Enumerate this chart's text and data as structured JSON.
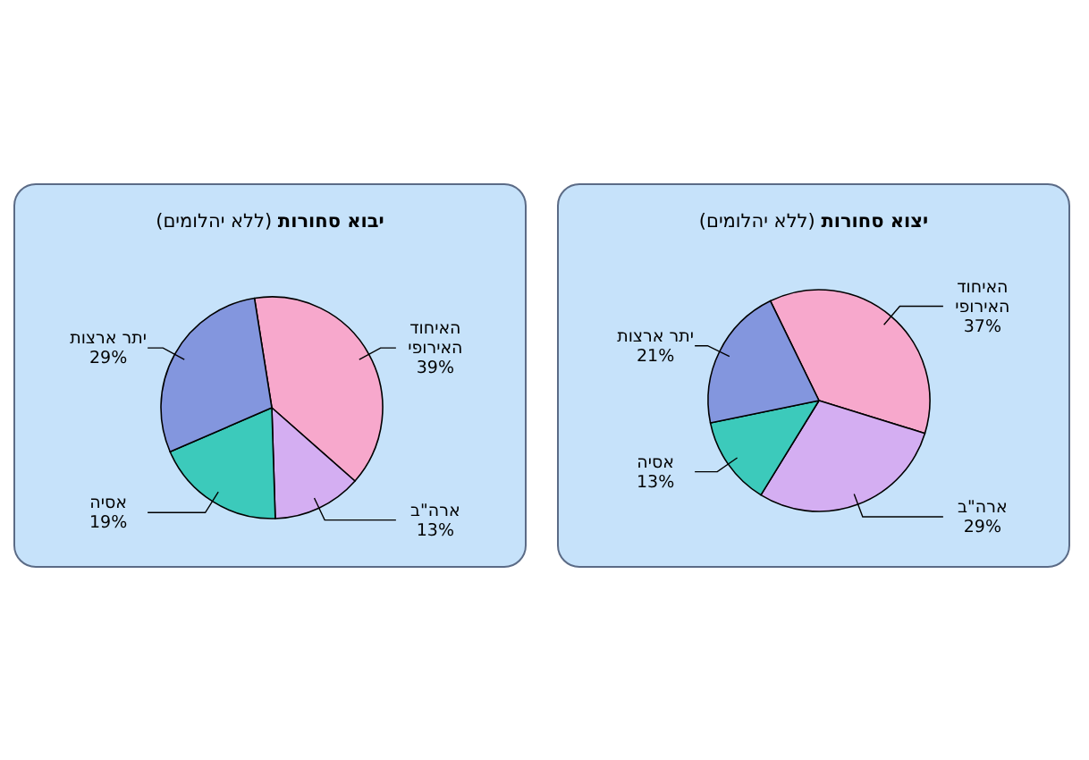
{
  "chart_data": [
    {
      "type": "pie",
      "title": "**יבוא סחורות** (ללא יהלומים)",
      "categories": [
        "האיחוד האירופי",
        "ארה\"ב",
        "אסיה",
        "יתר ארצות"
      ],
      "values": [
        39,
        13,
        19,
        29
      ],
      "value_labels": [
        "39%",
        "13%",
        "19%",
        "29%"
      ],
      "colors": [
        "#f7a8cc",
        "#d4aef2",
        "#3ccabb",
        "#8396de"
      ]
    },
    {
      "type": "pie",
      "title": "**יצוא סחורות** (ללא יהלומים)",
      "categories": [
        "האיחוד האירופי",
        "ארה\"ב",
        "אסיה",
        "יתר ארצות"
      ],
      "values": [
        37,
        29,
        13,
        21
      ],
      "value_labels": [
        "37%",
        "29%",
        "13%",
        "21%"
      ],
      "colors": [
        "#f7a8cc",
        "#d4aef2",
        "#3ccabb",
        "#8396de"
      ]
    }
  ]
}
